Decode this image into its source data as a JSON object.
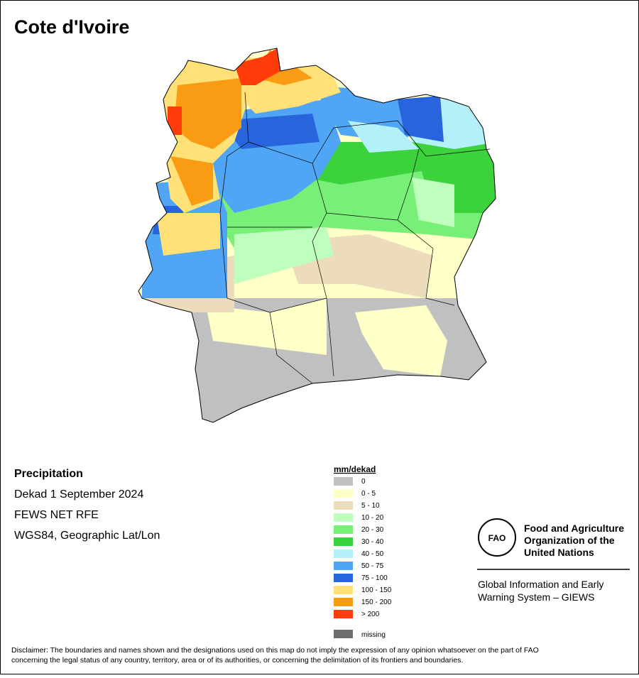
{
  "title": "Cote d'Ivoire",
  "info": [
    "Precipitation",
    "Dekad 1 September 2024",
    "FEWS NET RFE",
    "WGS84, Geographic Lat/Lon"
  ],
  "legend": {
    "title": "mm/dekad",
    "items": [
      {
        "label": "0",
        "color": "#c0c0c0"
      },
      {
        "label": "0 - 5",
        "color": "#ffffc8"
      },
      {
        "label": "5 - 10",
        "color": "#ecdcbc"
      },
      {
        "label": "10 - 20",
        "color": "#beffbe"
      },
      {
        "label": "20 - 30",
        "color": "#78f078"
      },
      {
        "label": "30 - 40",
        "color": "#3cd23c"
      },
      {
        "label": "40 - 50",
        "color": "#b4f0fa"
      },
      {
        "label": "50 - 75",
        "color": "#50a5f5"
      },
      {
        "label": "75 - 100",
        "color": "#2864dc"
      },
      {
        "label": "100 - 150",
        "color": "#ffe178"
      },
      {
        "label": "150 - 200",
        "color": "#fa9b14"
      },
      {
        "label": "> 200",
        "color": "#ff3c0a"
      }
    ],
    "missing": {
      "label": "missing",
      "color": "#6e6e6e"
    }
  },
  "logo": {
    "org": [
      "Food and Agriculture",
      "Organization of the",
      "United Nations"
    ],
    "system": [
      "Global Information and Early",
      "Warning System – GIEWS"
    ]
  },
  "disclaimer": [
    "Disclaimer: The boundaries and names shown and the designations used on this map do not imply the expression of any opinion whatsoever on the part of FAO",
    "concerning the legal status of any country, territory, area or of its authorities, or concerning the delimitation of its frontiers and boundaries."
  ]
}
